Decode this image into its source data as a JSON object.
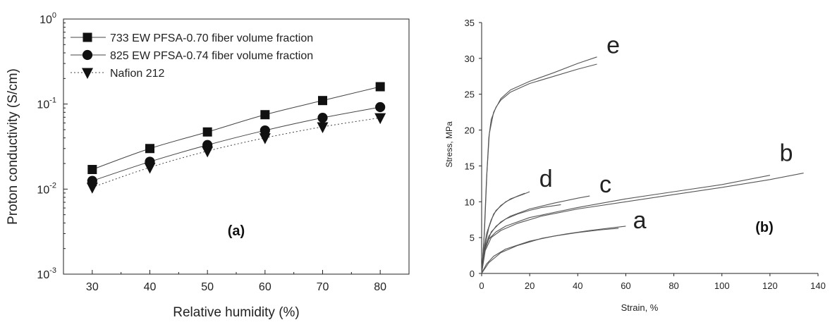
{
  "chart_data": [
    {
      "type": "line",
      "panel_label": "(a)",
      "ylabel": "Proton conductivity (S/cm)",
      "xlabel": "Relative humidity (%)",
      "yscale": "log",
      "ylim": [
        0.001,
        1
      ],
      "xlim": [
        25,
        85
      ],
      "x_ticks": [
        30,
        40,
        50,
        60,
        70,
        80
      ],
      "y_ticks": [
        {
          "value": 0.001,
          "base": "10",
          "exp": "-3"
        },
        {
          "value": 0.01,
          "base": "10",
          "exp": "-2"
        },
        {
          "value": 0.1,
          "base": "10",
          "exp": "-1"
        },
        {
          "value": 1,
          "base": "10",
          "exp": "0"
        }
      ],
      "legend_position": "top-left",
      "x": [
        30,
        40,
        50,
        60,
        70,
        80
      ],
      "series": [
        {
          "name": "733 EW PFSA-0.70 fiber volume fraction",
          "marker": "square",
          "line": "solid",
          "values": [
            0.017,
            0.03,
            0.047,
            0.075,
            0.11,
            0.16
          ]
        },
        {
          "name": "825 EW PFSA-0.74 fiber volume fraction",
          "marker": "circle",
          "line": "solid",
          "values": [
            0.0125,
            0.021,
            0.033,
            0.049,
            0.069,
            0.092
          ]
        },
        {
          "name": "Nafion 212",
          "marker": "triangle-down",
          "line": "dotted",
          "values": [
            0.0105,
            0.018,
            0.028,
            0.04,
            0.054,
            0.069
          ]
        }
      ]
    },
    {
      "type": "line",
      "panel_label": "(b)",
      "ylabel": "Stress, MPa",
      "xlabel": "Strain, %",
      "xlim": [
        0,
        140
      ],
      "ylim": [
        0,
        35
      ],
      "x_ticks": [
        0,
        20,
        40,
        60,
        80,
        100,
        120,
        140
      ],
      "y_ticks": [
        0,
        5,
        10,
        15,
        20,
        25,
        30,
        35
      ],
      "series": [
        {
          "name": "a",
          "curves": [
            [
              [
                0,
                0
              ],
              [
                2,
                1.3
              ],
              [
                5,
                2.4
              ],
              [
                10,
                3.4
              ],
              [
                20,
                4.5
              ],
              [
                30,
                5.2
              ],
              [
                40,
                5.7
              ],
              [
                50,
                6.1
              ],
              [
                57,
                6.3
              ]
            ],
            [
              [
                0,
                0
              ],
              [
                3,
                1.5
              ],
              [
                8,
                2.9
              ],
              [
                15,
                3.9
              ],
              [
                25,
                4.9
              ],
              [
                35,
                5.5
              ],
              [
                45,
                6.0
              ],
              [
                55,
                6.4
              ],
              [
                60,
                6.6
              ]
            ]
          ],
          "label_at": [
            63,
            6.3
          ]
        },
        {
          "name": "b",
          "curves": [
            [
              [
                0,
                0
              ],
              [
                1,
                3
              ],
              [
                3,
                4.8
              ],
              [
                6,
                5.8
              ],
              [
                10,
                6.6
              ],
              [
                20,
                7.8
              ],
              [
                30,
                8.5
              ],
              [
                40,
                9.2
              ],
              [
                60,
                10.4
              ],
              [
                80,
                11.4
              ],
              [
                100,
                12.4
              ],
              [
                120,
                13.7
              ]
            ],
            [
              [
                0,
                0
              ],
              [
                1.5,
                3.2
              ],
              [
                4,
                5.0
              ],
              [
                8,
                6.0
              ],
              [
                15,
                7.0
              ],
              [
                25,
                8.0
              ],
              [
                40,
                9.0
              ],
              [
                60,
                10.0
              ],
              [
                80,
                11.0
              ],
              [
                100,
                12.0
              ],
              [
                120,
                13.1
              ],
              [
                134,
                14.0
              ]
            ]
          ],
          "label_at": [
            124,
            15.7
          ]
        },
        {
          "name": "c",
          "curves": [
            [
              [
                0,
                0
              ],
              [
                1,
                3.2
              ],
              [
                3,
                5.2
              ],
              [
                6,
                6.6
              ],
              [
                10,
                7.6
              ],
              [
                15,
                8.3
              ],
              [
                20,
                8.8
              ],
              [
                25,
                9.2
              ],
              [
                33,
                9.6
              ]
            ],
            [
              [
                0,
                0
              ],
              [
                1.5,
                3.5
              ],
              [
                4,
                5.8
              ],
              [
                8,
                7.2
              ],
              [
                12,
                8.0
              ],
              [
                20,
                9.0
              ],
              [
                30,
                9.8
              ],
              [
                40,
                10.5
              ],
              [
                45,
                10.8
              ]
            ]
          ],
          "label_at": [
            49,
            11.3
          ]
        },
        {
          "name": "d",
          "curves": [
            [
              [
                0,
                0
              ],
              [
                1,
                3.5
              ],
              [
                2,
                5.5
              ],
              [
                4,
                7.5
              ],
              [
                6,
                8.8
              ],
              [
                10,
                10.0
              ],
              [
                15,
                10.8
              ],
              [
                18,
                11.2
              ]
            ],
            [
              [
                0,
                0
              ],
              [
                1.5,
                4.0
              ],
              [
                3,
                6.4
              ],
              [
                5,
                8.3
              ],
              [
                8,
                9.5
              ],
              [
                12,
                10.4
              ],
              [
                17,
                11.0
              ],
              [
                20,
                11.4
              ]
            ]
          ],
          "label_at": [
            24,
            12.1
          ]
        },
        {
          "name": "e",
          "curves": [
            [
              [
                0,
                0
              ],
              [
                1,
                5
              ],
              [
                2,
                13
              ],
              [
                3,
                19
              ],
              [
                4,
                21.5
              ],
              [
                6,
                23.2
              ],
              [
                8,
                24.2
              ],
              [
                12,
                25.3
              ],
              [
                20,
                26.5
              ],
              [
                30,
                27.5
              ],
              [
                40,
                28.5
              ],
              [
                48,
                29.2
              ]
            ],
            [
              [
                0,
                0
              ],
              [
                1.2,
                6
              ],
              [
                2.2,
                14
              ],
              [
                3.2,
                19.5
              ],
              [
                5,
                22.5
              ],
              [
                8,
                24.4
              ],
              [
                12,
                25.6
              ],
              [
                20,
                26.8
              ],
              [
                30,
                28.0
              ],
              [
                40,
                29.3
              ],
              [
                48,
                30.2
              ]
            ]
          ],
          "label_at": [
            52,
            30.7
          ]
        }
      ]
    }
  ]
}
